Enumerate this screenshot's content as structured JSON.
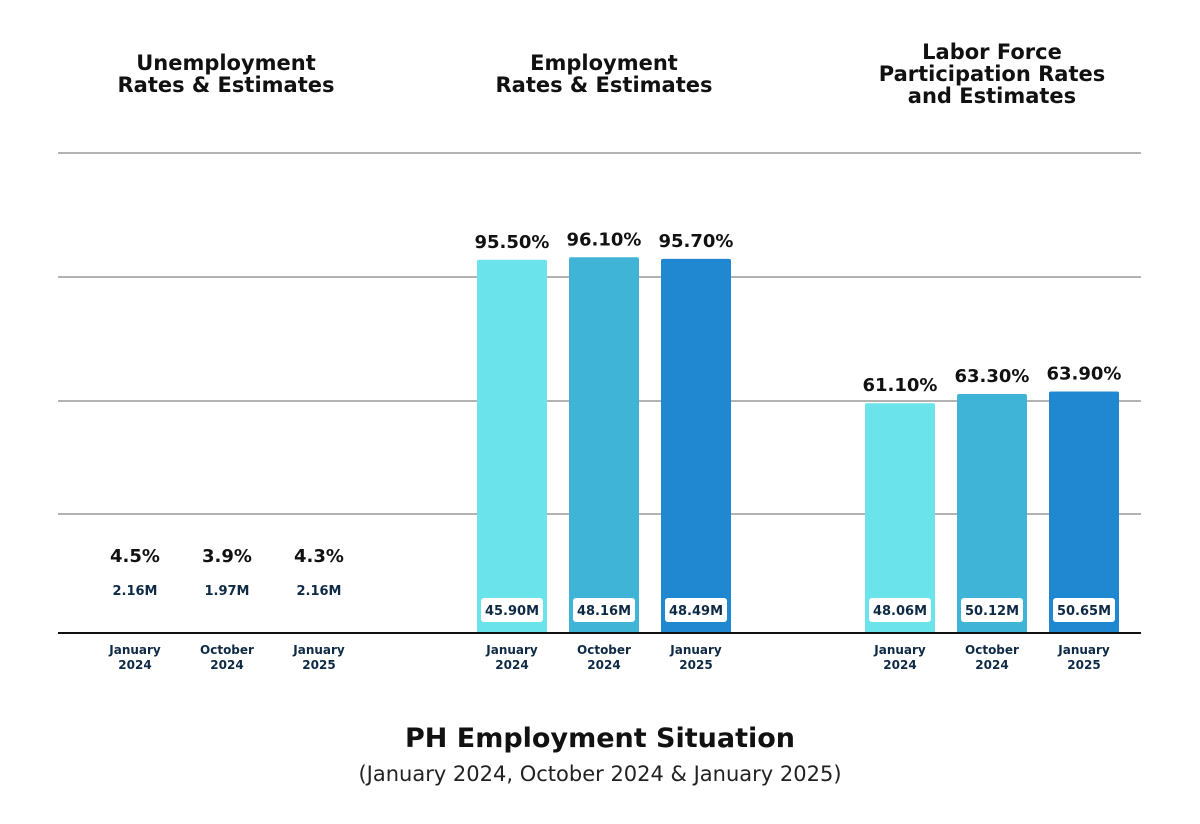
{
  "chart_data": [
    {
      "type": "bar",
      "title_lines": [
        "Unemployment",
        "Rates & Estimates"
      ],
      "categories": [
        [
          "January",
          "2024"
        ],
        [
          "October",
          "2024"
        ],
        [
          "January",
          "2025"
        ]
      ],
      "values": [
        4.5,
        3.9,
        4.3
      ],
      "value_labels": [
        "4.5%",
        "3.9%",
        "4.3%"
      ],
      "estimates": [
        2.16,
        1.97,
        2.16
      ],
      "estimate_labels": [
        "2.16M",
        "1.97M",
        "2.16M"
      ],
      "ylim": [
        0,
        100
      ]
    },
    {
      "type": "bar",
      "title_lines": [
        "Employment",
        "Rates & Estimates"
      ],
      "categories": [
        [
          "January",
          "2024"
        ],
        [
          "October",
          "2024"
        ],
        [
          "January",
          "2025"
        ]
      ],
      "values": [
        95.5,
        96.1,
        95.7
      ],
      "value_labels": [
        "95.50%",
        "96.10%",
        "95.70%"
      ],
      "estimates": [
        45.9,
        48.16,
        48.49
      ],
      "estimate_labels": [
        "45.90M",
        "48.16M",
        "48.49M"
      ],
      "ylim": [
        0,
        100
      ]
    },
    {
      "type": "bar",
      "title_lines": [
        "Labor Force",
        "Participation Rates",
        "and Estimates"
      ],
      "categories": [
        [
          "January",
          "2024"
        ],
        [
          "October",
          "2024"
        ],
        [
          "January",
          "2025"
        ]
      ],
      "values": [
        61.1,
        63.3,
        63.9
      ],
      "value_labels": [
        "61.10%",
        "63.30%",
        "63.90%"
      ],
      "estimates": [
        48.06,
        50.12,
        50.65
      ],
      "estimate_labels": [
        "48.06M",
        "50.12M",
        "50.65M"
      ],
      "ylim": [
        0,
        100
      ]
    }
  ],
  "colors": [
    "#6ae3ea",
    "#40b4d6",
    "#1f88d0"
  ],
  "title": "PH Employment Situation",
  "subtitle": "(January 2024, October 2024 & January 2025)"
}
